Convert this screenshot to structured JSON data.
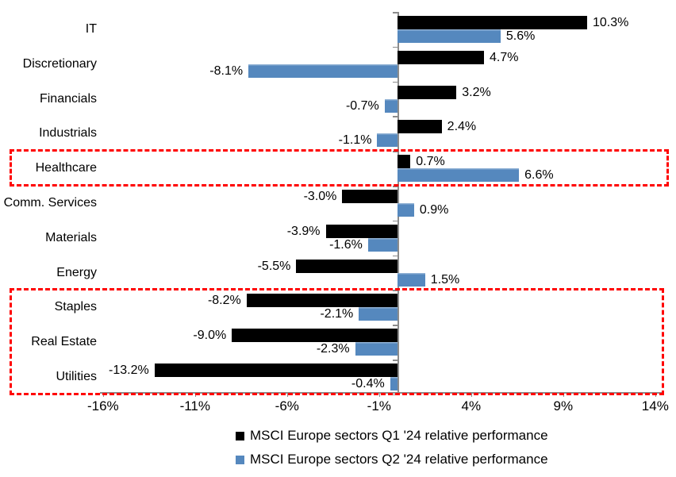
{
  "chart_data": {
    "type": "bar",
    "orientation": "horizontal",
    "title": "",
    "categories": [
      "IT",
      "Discretionary",
      "Financials",
      "Industrials",
      "Healthcare",
      "Comm. Services",
      "Materials",
      "Energy",
      "Staples",
      "Real Estate",
      "Utilities"
    ],
    "series": [
      {
        "name": "MSCI Europe sectors Q1 '24 relative performance",
        "color": "#000000",
        "values": [
          10.3,
          4.7,
          3.2,
          2.4,
          0.7,
          -3.0,
          -3.9,
          -5.5,
          -8.2,
          -9.0,
          -13.2
        ],
        "labels": [
          "10.3%",
          "4.7%",
          "3.2%",
          "2.4%",
          "0.7%",
          "-3.0%",
          "-3.9%",
          "-5.5%",
          "-8.2%",
          "-9.0%",
          "-13.2%"
        ]
      },
      {
        "name": "MSCI Europe sectors Q2 '24 relative performance",
        "color": "#5588BE",
        "values": [
          5.6,
          -8.1,
          -0.7,
          -1.1,
          6.6,
          0.9,
          -1.6,
          1.5,
          -2.1,
          -2.3,
          -0.4
        ],
        "labels": [
          "5.6%",
          "-8.1%",
          "-0.7%",
          "-1.1%",
          "6.6%",
          "0.9%",
          "-1.6%",
          "1.5%",
          "-2.1%",
          "-2.3%",
          "-0.4%"
        ]
      }
    ],
    "x_ticks": [
      {
        "value": -16,
        "label": "-16%"
      },
      {
        "value": -11,
        "label": "-11%"
      },
      {
        "value": -6,
        "label": "-6%"
      },
      {
        "value": -1,
        "label": "-1%"
      },
      {
        "value": 4,
        "label": "4%"
      },
      {
        "value": 9,
        "label": "9%"
      },
      {
        "value": 14,
        "label": "14%"
      }
    ],
    "xlim": [
      -16.2,
      14.4
    ],
    "grid": false,
    "value_labels_position": "outside-end",
    "legend_position": "bottom-center",
    "axis_color": "#8C8C8C",
    "annotations": [
      {
        "type": "dashed-box",
        "color": "#FF0000",
        "rows": [
          "Healthcare"
        ]
      },
      {
        "type": "dashed-box",
        "color": "#FF0000",
        "rows": [
          "Staples",
          "Real Estate",
          "Utilities"
        ]
      }
    ]
  }
}
